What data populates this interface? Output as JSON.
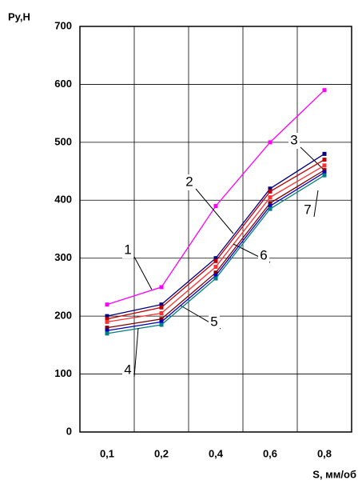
{
  "chart_data": {
    "type": "line",
    "y_label": "Py,H",
    "x_label": "S, мм/об",
    "categories": [
      "0,1",
      "0,2",
      "0,4",
      "0,6",
      "0,8"
    ],
    "series": [
      {
        "name": "1",
        "color": "#ff00ff",
        "values": [
          220,
          250,
          390,
          500,
          590
        ]
      },
      {
        "name": "3",
        "color": "#000080",
        "values": [
          200,
          220,
          300,
          420,
          480
        ]
      },
      {
        "name": "2",
        "color": "#c00000",
        "values": [
          195,
          215,
          295,
          415,
          470
        ]
      },
      {
        "name": "6",
        "color": "#ff3030",
        "values": [
          190,
          205,
          285,
          405,
          460
        ]
      },
      {
        "name": "5",
        "color": "#800000",
        "values": [
          180,
          195,
          275,
          395,
          452
        ]
      },
      {
        "name": "7",
        "color": "#0000c0",
        "values": [
          175,
          190,
          270,
          390,
          448
        ]
      },
      {
        "name": "4",
        "color": "#008080",
        "values": [
          170,
          185,
          265,
          385,
          443
        ]
      }
    ],
    "ylim": [
      0,
      700
    ],
    "yticks": [
      0,
      100,
      200,
      300,
      400,
      500,
      600,
      700
    ],
    "grid": true
  }
}
